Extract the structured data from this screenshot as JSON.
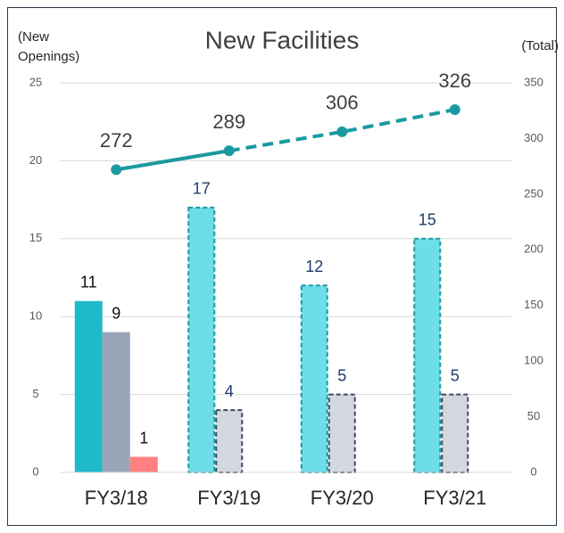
{
  "chart_data": {
    "type": "bar_line",
    "title": "New Facilities",
    "y_label": [
      "(New",
      "Openings)"
    ],
    "y2_label": "(Total)",
    "categories": [
      "FY3/18",
      "FY3/19",
      "FY3/20",
      "FY3/21"
    ],
    "forecast_from": 1,
    "series": [
      {
        "type": "bar",
        "color": "#1fbac9",
        "forecast_color": "#6ddde8",
        "forecast_border": "#1a9aa3",
        "values": [
          11,
          17,
          12,
          15
        ]
      },
      {
        "type": "bar",
        "color": "#9aa5b8",
        "forecast_color": "#d3d7e0",
        "forecast_border": "#3e4c5e",
        "values": [
          9,
          4,
          5,
          5
        ]
      },
      {
        "type": "bar",
        "color": "#ff8080",
        "values": [
          1,
          null,
          null,
          null
        ]
      },
      {
        "type": "line",
        "axis": "y2",
        "color": "#1a9aa0",
        "values": [
          272,
          289,
          306,
          326
        ]
      }
    ],
    "ylim": [
      0,
      25
    ],
    "yticks": [
      0,
      5,
      10,
      15,
      20,
      25
    ],
    "y2lim": [
      0,
      350
    ],
    "y2ticks": [
      0,
      50,
      100,
      150,
      200,
      250,
      300,
      350
    ],
    "grid": true
  }
}
